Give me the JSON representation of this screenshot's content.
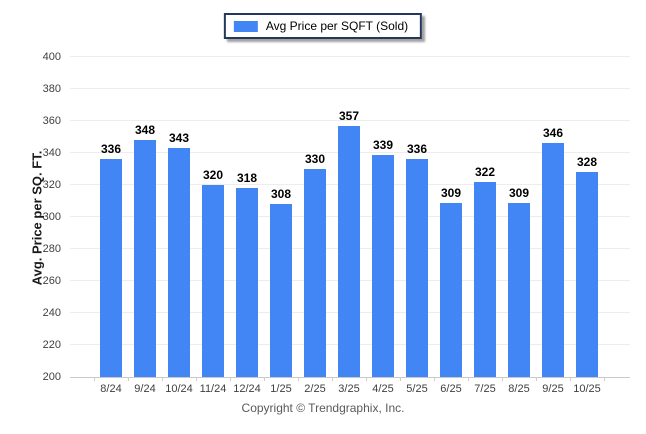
{
  "legend": {
    "label": "Avg Price per SQFT (Sold)",
    "swatch_color": "#4285f4"
  },
  "footer": {
    "copyright": "Copyright © Trendgraphix, Inc."
  },
  "chart_data": {
    "type": "bar",
    "title": "",
    "series_name": "Avg Price per SQFT (Sold)",
    "categories": [
      "8/24",
      "9/24",
      "10/24",
      "11/24",
      "12/24",
      "1/25",
      "2/25",
      "3/25",
      "4/25",
      "5/25",
      "6/25",
      "7/25",
      "8/25",
      "9/25",
      "10/25"
    ],
    "values": [
      336,
      348,
      343,
      320,
      318,
      308,
      330,
      357,
      339,
      336,
      309,
      322,
      309,
      346,
      328
    ],
    "xlabel": "",
    "ylabel": "Avg. Price per SQ. FT.",
    "ylim": [
      200,
      400
    ],
    "ytick_step": 20,
    "grid": true,
    "legend_position": "top-center",
    "bar_color": "#4285f4"
  }
}
